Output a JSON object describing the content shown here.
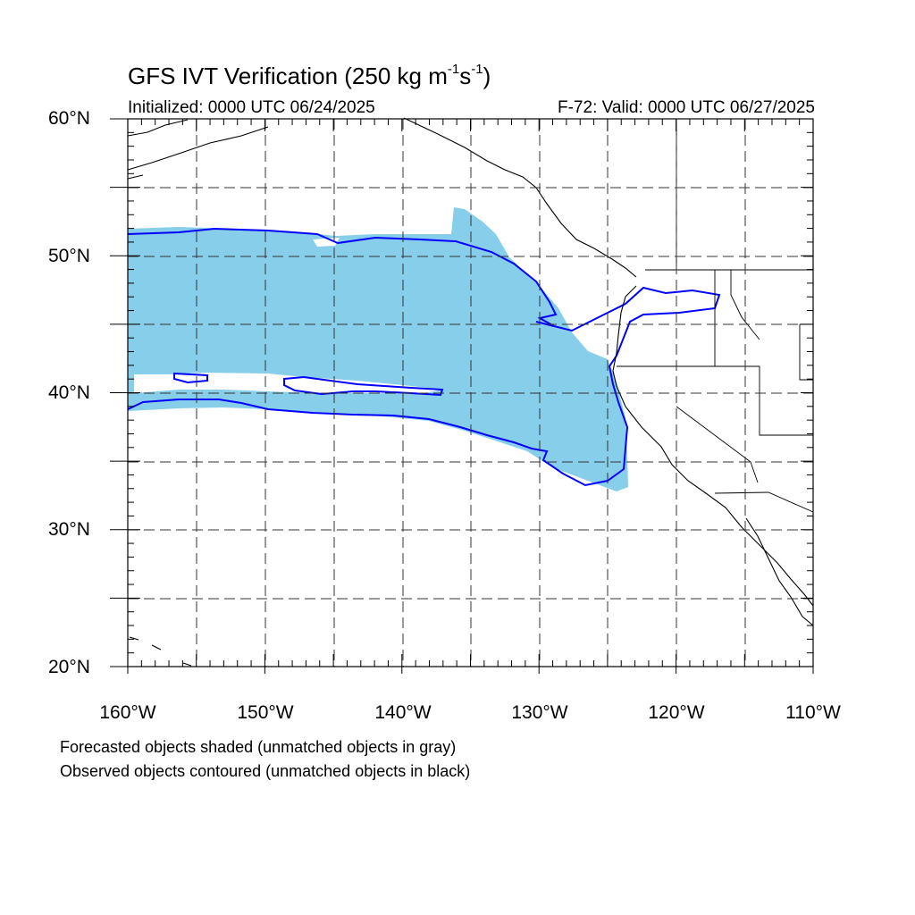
{
  "title": {
    "main": "GFS IVT Verification (250 kg m",
    "sup1": "-1",
    "mid": "s",
    "sup2": "-1",
    "end": ")"
  },
  "initialized": "Initialized: 0000 UTC 06/24/2025",
  "valid": "F-72: Valid: 0000 UTC 06/27/2025",
  "lat_labels": [
    "60°N",
    "50°N",
    "40°N",
    "30°N",
    "20°N"
  ],
  "lon_labels": [
    "160°W",
    "150°W",
    "140°W",
    "130°W",
    "120°W",
    "110°W"
  ],
  "footnotes": [
    "Forecasted objects shaded (unmatched objects in gray)",
    "Observed objects contoured (unmatched objects in black)"
  ],
  "colors": {
    "forecast_fill": "#87ceeb",
    "observed_contour": "#0000ff",
    "coastline": "#000000",
    "grid": "#333333"
  },
  "map": {
    "lon_range": [
      -160,
      -110
    ],
    "lat_range": [
      20,
      60
    ],
    "projection": "cylindrical-equidistant",
    "grid_lines": "dashed every 5 degrees"
  }
}
